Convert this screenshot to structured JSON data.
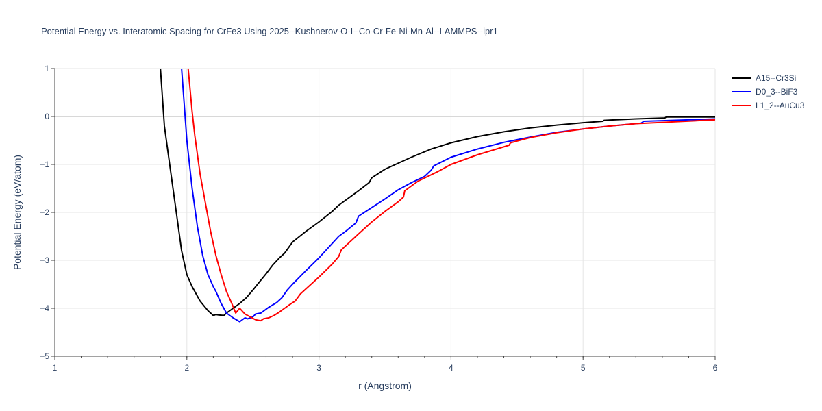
{
  "chart_data": {
    "type": "line",
    "title": "Potential Energy vs. Interatomic Spacing for CrFe3 Using 2025--Kushnerov-O-I--Co-Cr-Fe-Ni-Mn-Al--LAMMPS--ipr1",
    "xlabel": "r (Angstrom)",
    "ylabel": "Potential Energy (eV/atom)",
    "xlim": [
      1,
      6
    ],
    "ylim": [
      -5,
      1
    ],
    "xticks": [
      1,
      2,
      3,
      4,
      5,
      6
    ],
    "yticks": [
      1,
      0,
      -1,
      -2,
      -3,
      -4,
      -5
    ],
    "xtick_labels": [
      "1",
      "2",
      "3",
      "4",
      "5",
      "6"
    ],
    "ytick_labels": [
      "1",
      "0",
      "−1",
      "−2",
      "−3",
      "−4",
      "−5"
    ],
    "legend_position": "top-right",
    "series": [
      {
        "name": "A15--Cr3Si",
        "color": "#000000",
        "x": [
          1.8,
          1.83,
          1.87,
          1.92,
          1.96,
          2.0,
          2.04,
          2.1,
          2.16,
          2.2,
          2.22,
          2.24,
          2.28,
          2.3,
          2.35,
          2.4,
          2.45,
          2.5,
          2.55,
          2.6,
          2.65,
          2.7,
          2.74,
          2.8,
          2.9,
          3.0,
          3.1,
          3.15,
          3.2,
          3.3,
          3.38,
          3.4,
          3.5,
          3.7,
          3.85,
          4.0,
          4.2,
          4.4,
          4.6,
          4.8,
          5.0,
          5.15,
          5.16,
          5.4,
          5.62,
          5.63,
          6.0
        ],
        "y": [
          1.0,
          -0.2,
          -1.0,
          -2.0,
          -2.8,
          -3.3,
          -3.55,
          -3.85,
          -4.05,
          -4.15,
          -4.13,
          -4.14,
          -4.15,
          -4.1,
          -4.0,
          -3.9,
          -3.78,
          -3.62,
          -3.45,
          -3.28,
          -3.1,
          -2.95,
          -2.85,
          -2.62,
          -2.4,
          -2.2,
          -1.98,
          -1.85,
          -1.75,
          -1.55,
          -1.38,
          -1.28,
          -1.1,
          -0.85,
          -0.68,
          -0.55,
          -0.42,
          -0.32,
          -0.24,
          -0.18,
          -0.13,
          -0.1,
          -0.08,
          -0.05,
          -0.03,
          -0.01,
          -0.01
        ]
      },
      {
        "name": "D0_3--BiF3",
        "color": "#0000ff",
        "x": [
          1.96,
          2.0,
          2.04,
          2.08,
          2.12,
          2.16,
          2.2,
          2.22,
          2.26,
          2.3,
          2.35,
          2.4,
          2.44,
          2.46,
          2.5,
          2.52,
          2.56,
          2.62,
          2.68,
          2.72,
          2.76,
          2.8,
          2.9,
          3.0,
          3.1,
          3.15,
          3.2,
          3.28,
          3.3,
          3.4,
          3.5,
          3.6,
          3.7,
          3.8,
          3.85,
          3.87,
          4.0,
          4.2,
          4.4,
          4.6,
          4.8,
          5.0,
          5.2,
          5.44,
          5.46,
          5.8,
          6.0
        ],
        "y": [
          1.0,
          -0.5,
          -1.5,
          -2.3,
          -2.9,
          -3.3,
          -3.55,
          -3.65,
          -3.9,
          -4.1,
          -4.2,
          -4.28,
          -4.2,
          -4.22,
          -4.18,
          -4.12,
          -4.1,
          -3.98,
          -3.88,
          -3.78,
          -3.62,
          -3.5,
          -3.22,
          -2.95,
          -2.65,
          -2.5,
          -2.4,
          -2.22,
          -2.08,
          -1.9,
          -1.72,
          -1.53,
          -1.38,
          -1.25,
          -1.12,
          -1.03,
          -0.85,
          -0.68,
          -0.54,
          -0.43,
          -0.33,
          -0.26,
          -0.2,
          -0.14,
          -0.1,
          -0.07,
          -0.05
        ]
      },
      {
        "name": "L1_2--AuCu3",
        "color": "#ff0000",
        "x": [
          2.01,
          2.04,
          2.06,
          2.1,
          2.14,
          2.18,
          2.22,
          2.26,
          2.3,
          2.34,
          2.37,
          2.4,
          2.44,
          2.48,
          2.52,
          2.56,
          2.58,
          2.62,
          2.66,
          2.7,
          2.74,
          2.78,
          2.82,
          2.86,
          2.9,
          3.0,
          3.1,
          3.15,
          3.17,
          3.3,
          3.4,
          3.5,
          3.6,
          3.64,
          3.65,
          3.75,
          3.9,
          4.0,
          4.2,
          4.44,
          4.45,
          4.6,
          4.8,
          5.0,
          5.2,
          5.4,
          6.0
        ],
        "y": [
          1.0,
          0.1,
          -0.4,
          -1.2,
          -1.8,
          -2.4,
          -2.9,
          -3.3,
          -3.65,
          -3.9,
          -4.1,
          -4.0,
          -4.12,
          -4.18,
          -4.24,
          -4.26,
          -4.22,
          -4.2,
          -4.15,
          -4.08,
          -4.0,
          -3.92,
          -3.85,
          -3.7,
          -3.6,
          -3.35,
          -3.08,
          -2.92,
          -2.78,
          -2.45,
          -2.2,
          -1.98,
          -1.78,
          -1.68,
          -1.55,
          -1.35,
          -1.15,
          -1.0,
          -0.8,
          -0.6,
          -0.55,
          -0.44,
          -0.34,
          -0.26,
          -0.2,
          -0.15,
          -0.07
        ]
      }
    ]
  }
}
